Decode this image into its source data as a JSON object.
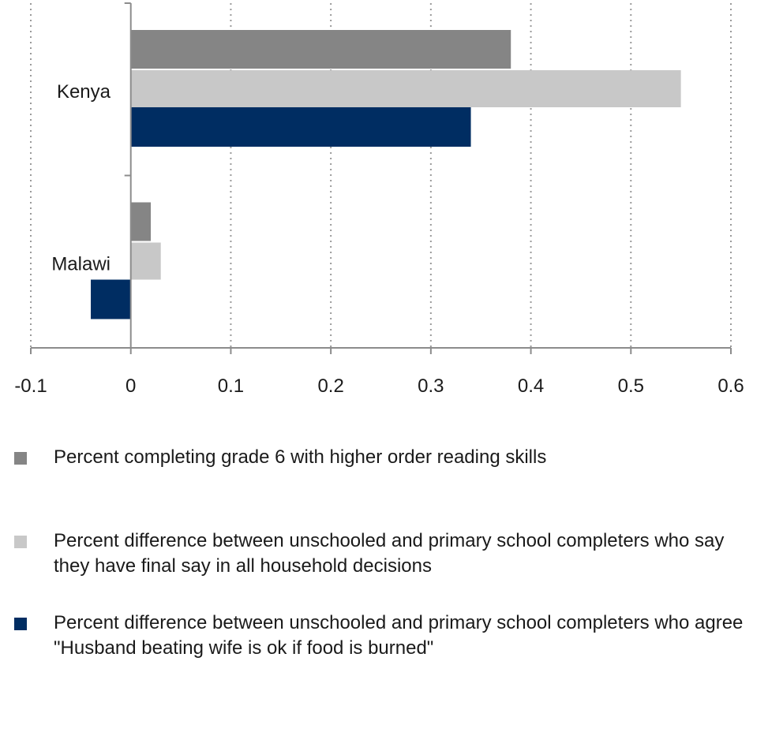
{
  "chart_data": {
    "type": "bar",
    "orientation": "horizontal",
    "categories": [
      "Kenya",
      "Malawi"
    ],
    "series": [
      {
        "name": "Percent completing grade 6 with higher order reading skills",
        "color": "#858585",
        "values": [
          0.38,
          0.02
        ]
      },
      {
        "name": "Percent difference between unschooled and primary school completers who say they have final say in all household decisions",
        "color": "#c8c8c8",
        "values": [
          0.55,
          0.03
        ]
      },
      {
        "name": "Percent difference between unschooled and primary school completers who agree \"Husband beating wife is ok if food is burned\"",
        "color": "#002d62",
        "values": [
          0.34,
          -0.04
        ]
      }
    ],
    "xlim": [
      -0.1,
      0.6
    ],
    "xticks": [
      -0.1,
      0,
      0.1,
      0.2,
      0.3,
      0.4,
      0.5,
      0.6
    ],
    "xtick_labels": [
      "-0.1",
      "0",
      "0.1",
      "0.2",
      "0.3",
      "0.4",
      "0.5",
      "0.6"
    ],
    "grid": "vertical dotted",
    "legend_position": "bottom"
  }
}
